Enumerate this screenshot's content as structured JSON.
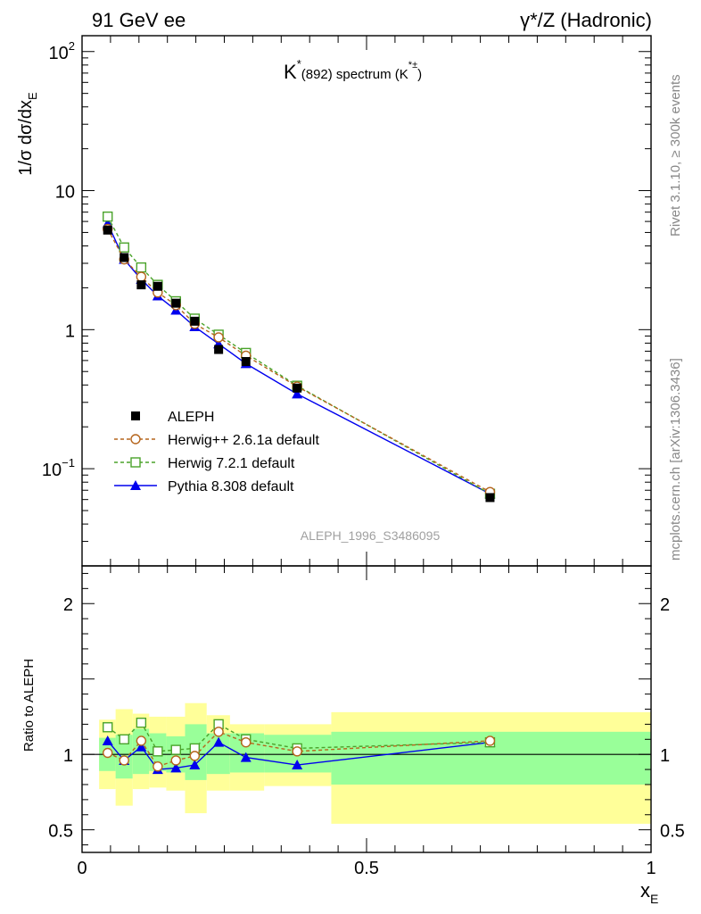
{
  "header": {
    "left_title": "91 GeV ee",
    "right_title": "γ*/Z (Hadronic)"
  },
  "side_labels": {
    "top": "Rivet 3.1.10, ≥ 300k events",
    "bottom": "mcplots.cern.ch [arXiv:1306.3436]"
  },
  "analysis_label": "ALEPH_1996_S3486095",
  "colors": {
    "aleph": "#000000",
    "herwigpp": "#b5651d",
    "herwig7": "#4aa32a",
    "pythia": "#0000ee",
    "band_inner": "#99ff99",
    "band_outer": "#ffff99"
  },
  "chart_data": [
    {
      "type": "scatter",
      "title": "K*(892) spectrum (K*±)",
      "title_main": "K",
      "title_sup": "*",
      "title_sub": "(892) spectrum (K",
      "title_sup2": "*±",
      "title_end": ")",
      "ylabel": "1/σ dσ/dx",
      "ylabel_sub": "E",
      "yscale": "log",
      "ylim": [
        0.02,
        130
      ],
      "xlim": [
        0,
        1
      ],
      "ytick_labels": [
        {
          "value": 100,
          "base": "10",
          "exp": "2"
        },
        {
          "value": 10,
          "base": "10",
          "exp": ""
        },
        {
          "value": 1,
          "base": "1",
          "exp": ""
        },
        {
          "value": 0.1,
          "base": "10",
          "exp": "−1"
        }
      ],
      "legend_position": "middle-left",
      "x": [
        0.045,
        0.074,
        0.104,
        0.133,
        0.165,
        0.198,
        0.24,
        0.288,
        0.378,
        0.717
      ],
      "series": [
        {
          "name": "ALEPH",
          "marker": "filled-square",
          "line": "none",
          "values": [
            5.2,
            3.3,
            2.1,
            2.05,
            1.55,
            1.15,
            0.72,
            0.59,
            0.38,
            0.062
          ]
        },
        {
          "name": "Herwig++ 2.6.1a default",
          "marker": "open-circle",
          "line": "dashed",
          "values": [
            5.3,
            3.2,
            2.4,
            1.85,
            1.5,
            1.1,
            0.88,
            0.65,
            0.39,
            0.068
          ]
        },
        {
          "name": "Herwig 7.2.1 default",
          "marker": "open-square",
          "line": "dashed",
          "values": [
            6.5,
            3.9,
            2.8,
            2.1,
            1.6,
            1.2,
            0.92,
            0.68,
            0.395,
            0.066
          ]
        },
        {
          "name": "Pythia 8.308 default",
          "marker": "filled-triangle",
          "line": "solid",
          "values": [
            5.8,
            3.2,
            2.3,
            1.75,
            1.38,
            1.05,
            0.79,
            0.57,
            0.345,
            0.066
          ]
        }
      ]
    },
    {
      "type": "line",
      "ylabel": "Ratio to ALEPH",
      "xlabel": "x",
      "xlabel_sub": "E",
      "ylim": [
        0.35,
        2.25
      ],
      "xlim": [
        0,
        1
      ],
      "yticks": [
        0.5,
        1,
        2
      ],
      "ytick_labels": [
        "0.5",
        "1",
        "2"
      ],
      "xticks": [
        0,
        0.5,
        1
      ],
      "xtick_labels": [
        "0",
        "0.5",
        "1"
      ],
      "reference_line": 1,
      "bins": [
        {
          "lo": 0.03,
          "hi": 0.059,
          "inner": [
            0.89,
            1.11
          ],
          "outer": [
            0.77,
            1.23
          ]
        },
        {
          "lo": 0.059,
          "hi": 0.089,
          "inner": [
            0.84,
            1.13
          ],
          "outer": [
            0.66,
            1.3
          ]
        },
        {
          "lo": 0.089,
          "hi": 0.118,
          "inner": [
            0.87,
            1.17
          ],
          "outer": [
            0.77,
            1.27
          ]
        },
        {
          "lo": 0.118,
          "hi": 0.148,
          "inner": [
            0.89,
            1.14
          ],
          "outer": [
            0.78,
            1.25
          ]
        },
        {
          "lo": 0.148,
          "hi": 0.181,
          "inner": [
            0.88,
            1.12
          ],
          "outer": [
            0.76,
            1.25
          ]
        },
        {
          "lo": 0.181,
          "hi": 0.219,
          "inner": [
            0.83,
            1.2
          ],
          "outer": [
            0.61,
            1.34
          ]
        },
        {
          "lo": 0.219,
          "hi": 0.26,
          "inner": [
            0.87,
            1.14
          ],
          "outer": [
            0.76,
            1.26
          ]
        },
        {
          "lo": 0.26,
          "hi": 0.32,
          "inner": [
            0.88,
            1.14
          ],
          "outer": [
            0.76,
            1.2
          ]
        },
        {
          "lo": 0.32,
          "hi": 0.438,
          "inner": [
            0.88,
            1.13
          ],
          "outer": [
            0.79,
            1.2
          ]
        },
        {
          "lo": 0.438,
          "hi": 1.0,
          "inner": [
            0.8,
            1.15
          ],
          "outer": [
            0.54,
            1.28
          ]
        }
      ],
      "x": [
        0.045,
        0.074,
        0.104,
        0.133,
        0.165,
        0.198,
        0.24,
        0.288,
        0.378,
        0.717
      ],
      "series": [
        {
          "name": "Herwig++ 2.6.1a default",
          "marker": "open-circle",
          "line": "dashed",
          "values": [
            1.01,
            0.96,
            1.09,
            0.92,
            0.96,
            0.99,
            1.15,
            1.08,
            1.02,
            1.09
          ]
        },
        {
          "name": "Herwig 7.2.1 default",
          "marker": "open-square",
          "line": "dashed",
          "values": [
            1.18,
            1.1,
            1.21,
            1.02,
            1.03,
            1.04,
            1.2,
            1.1,
            1.04,
            1.08
          ]
        },
        {
          "name": "Pythia 8.308 default",
          "marker": "filled-triangle",
          "line": "solid",
          "values": [
            1.09,
            0.96,
            1.05,
            0.9,
            0.91,
            0.93,
            1.08,
            0.98,
            0.93,
            1.08
          ]
        }
      ]
    }
  ]
}
